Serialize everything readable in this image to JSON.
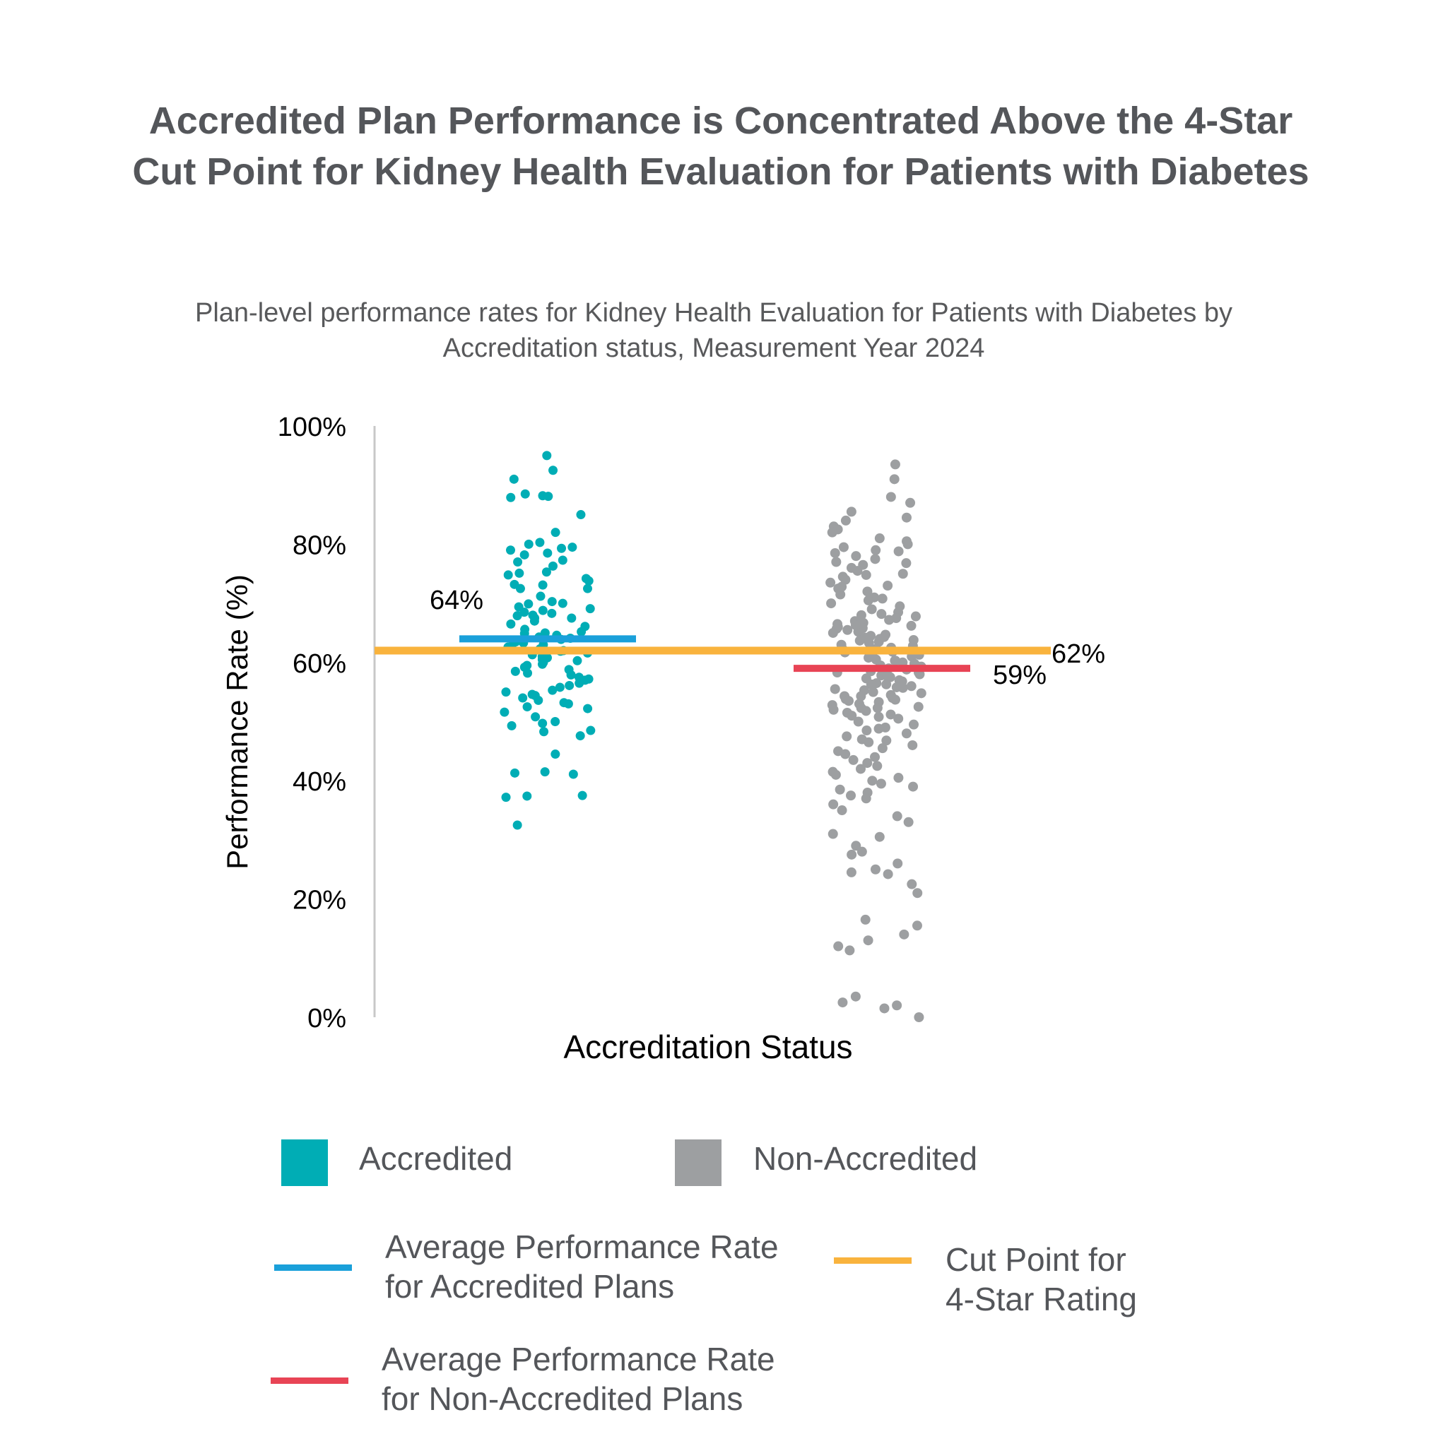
{
  "title": "Accredited Plan Performance is Concentrated Above the 4-Star Cut Point for Kidney Health Evaluation for Patients with Diabetes",
  "subtitle": "Plan-level performance rates for Kidney Health Evaluation for Patients with Diabetes by Accreditation status, Measurement Year 2024",
  "colors": {
    "accredited": "#00adb5",
    "non_accredited": "#9d9fa1",
    "avg_accredited": "#1aa0da",
    "avg_non_accredited": "#e84455",
    "cut_point": "#f9b33d"
  },
  "chart_data": {
    "type": "scatter",
    "xlabel": "Accreditation Status",
    "ylabel": "Performance Rate (%)",
    "ylim": [
      0,
      100
    ],
    "yticks": [
      "0%",
      "20%",
      "40%",
      "60%",
      "80%",
      "100%"
    ],
    "grid": false,
    "series": [
      {
        "name": "Accredited",
        "group": 0,
        "values": [
          95,
          92.5,
          91,
          88.5,
          88.2,
          88.1,
          87.9,
          85,
          82,
          80.3,
          80,
          79.5,
          79.3,
          79,
          78.5,
          78.2,
          77.3,
          77,
          76.3,
          75.3,
          75.1,
          74.8,
          74.2,
          73.8,
          73.2,
          73.1,
          72.5,
          72.5,
          71.2,
          70.3,
          70,
          69.9,
          69.4,
          69.1,
          68.8,
          68.5,
          68.3,
          68,
          67.9,
          67.5,
          67.5,
          67,
          66.5,
          66.1,
          65.6,
          65.2,
          65,
          64.9,
          64.6,
          64.3,
          64.1,
          63.9,
          63.5,
          63.3,
          63,
          62.8,
          62.6,
          62.3,
          62,
          61.9,
          61.6,
          61.3,
          61,
          60.8,
          60.5,
          60.3,
          60,
          59.7,
          59.5,
          59.2,
          58.8,
          58.5,
          58.2,
          57.9,
          57.5,
          57.2,
          57,
          56.5,
          56.1,
          55.8,
          55.3,
          55,
          54.6,
          54.4,
          54,
          53.6,
          53.2,
          53,
          52.5,
          52.2,
          51.6,
          50.8,
          50,
          49.7,
          49.3,
          48.5,
          48.3,
          47.6,
          44.5,
          41.5,
          41.3,
          41.1,
          37.5,
          37.4,
          37.2,
          32.5
        ],
        "mean": 64
      },
      {
        "name": "Non-Accredited",
        "group": 1,
        "values": [
          93.5,
          91,
          88,
          87,
          85.5,
          84.5,
          84,
          83,
          82.5,
          82,
          81,
          80.5,
          80,
          79.5,
          79,
          78.5,
          78,
          77.5,
          77,
          76.5,
          76,
          75.5,
          75,
          74.5,
          74,
          73.5,
          73,
          72.5,
          72,
          71.5,
          71,
          70.5,
          70,
          69.5,
          69,
          68.5,
          68,
          67.8,
          67.5,
          67.2,
          67,
          66.7,
          66.5,
          66.2,
          66,
          65.7,
          65.5,
          65.2,
          65,
          64.7,
          64.5,
          64.2,
          64,
          63.8,
          63.5,
          63.3,
          63,
          62.8,
          62.5,
          62.3,
          62,
          61.8,
          61.5,
          61.3,
          61,
          60.8,
          60.5,
          60.3,
          60,
          59.8,
          59.5,
          59.3,
          59,
          58.8,
          58.5,
          58.3,
          58,
          57.8,
          57.5,
          57.3,
          57,
          56.8,
          56.5,
          56.3,
          56,
          55.8,
          55.5,
          55.3,
          55,
          54.8,
          54.5,
          54.3,
          54,
          53.8,
          53.5,
          53.3,
          53,
          52.8,
          52.5,
          52.3,
          52,
          51.8,
          51.5,
          51.2,
          51,
          50.5,
          50,
          49.5,
          49,
          48.5,
          48,
          47.5,
          47,
          46.5,
          46,
          45.5,
          45,
          44.5,
          44,
          43.5,
          43,
          42.5,
          42,
          41.5,
          41,
          40.5,
          40,
          39.5,
          39,
          38.5,
          38,
          37.5,
          37,
          36,
          35,
          34,
          33,
          31,
          30.5,
          29,
          28,
          27.5,
          26,
          25,
          24.5,
          24.2,
          22.5,
          21,
          16.5,
          15.5,
          14,
          13,
          12,
          11.3,
          2.5,
          2,
          1.5,
          0,
          3.5,
          65.8,
          63.7,
          61.7,
          59.7,
          57.7,
          55.7,
          53.7,
          66.3,
          64.3,
          62.3,
          60.3,
          58.3,
          56.3,
          54.3,
          52.3,
          68.2,
          70.8,
          72.8,
          74.8,
          76.8,
          78.8,
          50.8,
          48.8,
          46.8
        ],
        "mean": 59
      }
    ],
    "reference_lines": [
      {
        "name": "Average Performance Rate for Accredited Plans",
        "value": 64,
        "label": "64%"
      },
      {
        "name": "Average Performance Rate for Non-Accredited Plans",
        "value": 59,
        "label": "59%"
      },
      {
        "name": "Cut Point for 4-Star Rating",
        "value": 62,
        "label": "62%"
      }
    ],
    "legend_placement": "bottom"
  },
  "legend": {
    "accredited": "Accredited",
    "non_accredited": "Non-Accredited",
    "avg_accredited_line1": "Average Performance Rate",
    "avg_accredited_line2": "for Accredited Plans",
    "avg_non_accredited_line1": "Average Performance Rate",
    "avg_non_accredited_line2": "for Non-Accredited Plans",
    "cut_point_line1": "Cut Point for",
    "cut_point_line2": "4-Star Rating"
  }
}
